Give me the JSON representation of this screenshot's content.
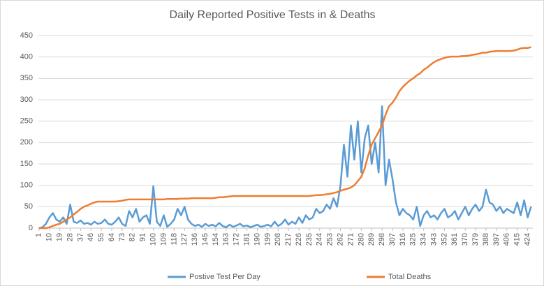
{
  "chart_data": {
    "type": "line",
    "title": "Daily Reported Positive Tests in & Deaths",
    "x": [
      1,
      4,
      7,
      10,
      13,
      16,
      19,
      22,
      25,
      28,
      31,
      34,
      37,
      40,
      43,
      46,
      49,
      52,
      55,
      58,
      61,
      64,
      67,
      70,
      73,
      76,
      79,
      82,
      85,
      88,
      91,
      94,
      97,
      100,
      103,
      106,
      109,
      112,
      115,
      118,
      121,
      124,
      127,
      130,
      133,
      136,
      139,
      142,
      145,
      148,
      151,
      154,
      157,
      160,
      163,
      166,
      169,
      172,
      175,
      178,
      181,
      184,
      187,
      190,
      193,
      196,
      199,
      202,
      205,
      208,
      211,
      214,
      217,
      220,
      223,
      226,
      229,
      232,
      235,
      238,
      241,
      244,
      247,
      250,
      253,
      256,
      259,
      262,
      265,
      268,
      271,
      274,
      277,
      280,
      283,
      286,
      289,
      292,
      295,
      298,
      301,
      304,
      307,
      310,
      313,
      316,
      319,
      322,
      325,
      328,
      331,
      334,
      337,
      340,
      343,
      346,
      349,
      352,
      355,
      358,
      361,
      364,
      367,
      370,
      373,
      376,
      379,
      382,
      385,
      388,
      391,
      394,
      397,
      400,
      403,
      406,
      409,
      412,
      415,
      418,
      421,
      424,
      427
    ],
    "series": [
      {
        "name": "Postive Test Per Day",
        "color": "#5b9bd5",
        "values": [
          0,
          2,
          10,
          25,
          35,
          20,
          15,
          25,
          10,
          55,
          15,
          12,
          18,
          10,
          12,
          8,
          15,
          10,
          12,
          20,
          10,
          8,
          15,
          25,
          10,
          5,
          40,
          25,
          45,
          15,
          25,
          30,
          10,
          98,
          15,
          5,
          30,
          3,
          10,
          20,
          45,
          30,
          50,
          20,
          10,
          5,
          8,
          3,
          10,
          5,
          8,
          4,
          12,
          5,
          2,
          8,
          3,
          6,
          10,
          4,
          6,
          2,
          5,
          8,
          3,
          5,
          8,
          4,
          15,
          5,
          10,
          20,
          8,
          15,
          10,
          25,
          12,
          30,
          20,
          25,
          45,
          35,
          40,
          55,
          45,
          70,
          50,
          100,
          195,
          120,
          240,
          160,
          250,
          130,
          210,
          240,
          150,
          200,
          130,
          285,
          100,
          160,
          115,
          60,
          30,
          45,
          35,
          30,
          20,
          50,
          5,
          30,
          40,
          25,
          30,
          20,
          35,
          45,
          25,
          30,
          40,
          20,
          35,
          50,
          30,
          45,
          55,
          40,
          50,
          90,
          60,
          55,
          40,
          50,
          35,
          45,
          40,
          35,
          60,
          30,
          65,
          25,
          50
        ]
      },
      {
        "name": "Total Deaths",
        "color": "#ed7d31",
        "values": [
          0,
          0,
          0,
          2,
          5,
          8,
          10,
          15,
          20,
          25,
          32,
          38,
          45,
          50,
          53,
          57,
          60,
          62,
          62,
          62,
          62,
          62,
          62,
          63,
          64,
          66,
          67,
          67,
          67,
          67,
          67,
          67,
          67,
          67,
          67,
          67,
          67,
          68,
          68,
          68,
          68,
          69,
          69,
          69,
          70,
          70,
          70,
          70,
          70,
          70,
          70,
          71,
          72,
          72,
          73,
          74,
          75,
          75,
          75,
          75,
          75,
          75,
          75,
          75,
          75,
          75,
          75,
          75,
          75,
          75,
          75,
          75,
          75,
          75,
          75,
          75,
          75,
          75,
          75,
          76,
          77,
          77,
          78,
          79,
          80,
          82,
          84,
          87,
          90,
          92,
          95,
          100,
          110,
          120,
          140,
          170,
          195,
          210,
          225,
          240,
          265,
          285,
          293,
          305,
          320,
          330,
          338,
          345,
          350,
          357,
          362,
          370,
          375,
          382,
          388,
          392,
          395,
          398,
          400,
          401,
          401,
          401,
          402,
          402,
          403,
          405,
          406,
          408,
          410,
          410,
          412,
          413,
          414,
          414,
          414,
          414,
          414,
          415,
          417,
          420,
          421,
          421,
          423
        ]
      }
    ],
    "xlim": [
      0.5,
      428.5
    ],
    "xticks": [
      1,
      10,
      19,
      28,
      37,
      46,
      55,
      64,
      73,
      82,
      91,
      100,
      109,
      118,
      127,
      136,
      145,
      154,
      163,
      172,
      181,
      190,
      199,
      208,
      217,
      226,
      235,
      244,
      253,
      262,
      271,
      280,
      289,
      298,
      307,
      316,
      325,
      334,
      343,
      352,
      361,
      370,
      379,
      388,
      397,
      406,
      415,
      424
    ],
    "ylim": [
      0,
      450
    ],
    "yticks": [
      0,
      50,
      100,
      150,
      200,
      250,
      300,
      350,
      400,
      450
    ],
    "grid": true,
    "legend": "bottom"
  }
}
